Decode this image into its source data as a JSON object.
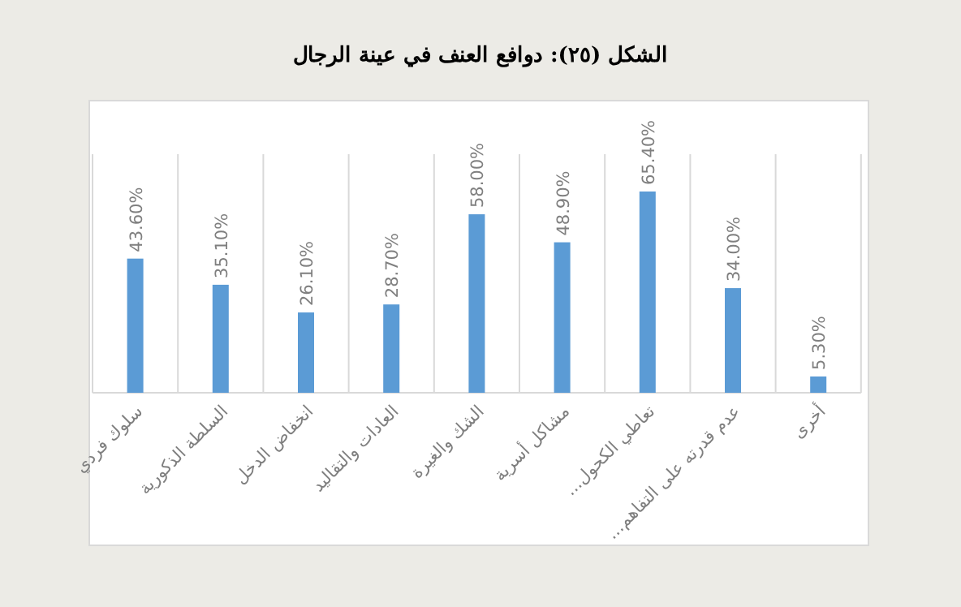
{
  "chart_data": {
    "type": "bar",
    "title": "الشكل (٢٥): دوافع العنف في عينة الرجال",
    "categories": [
      "سلوك فردي",
      "السلطة الذكورية",
      "انخفاض الدخل",
      "العادات والتقاليد",
      "الشك والغيرة",
      "مشاكل أسرية",
      "تعاطي الكحول...",
      "عدم قدرته على التفاهم...",
      "أخرى"
    ],
    "values": [
      43.6,
      35.1,
      26.1,
      28.7,
      58.0,
      48.9,
      65.4,
      34.0,
      5.3
    ],
    "value_labels": [
      "43.60%",
      "35.10%",
      "26.10%",
      "28.70%",
      "58.00%",
      "48.90%",
      "65.40%",
      "34.00%",
      "5.30%"
    ],
    "color": "#5b9bd5",
    "grid": "x"
  }
}
